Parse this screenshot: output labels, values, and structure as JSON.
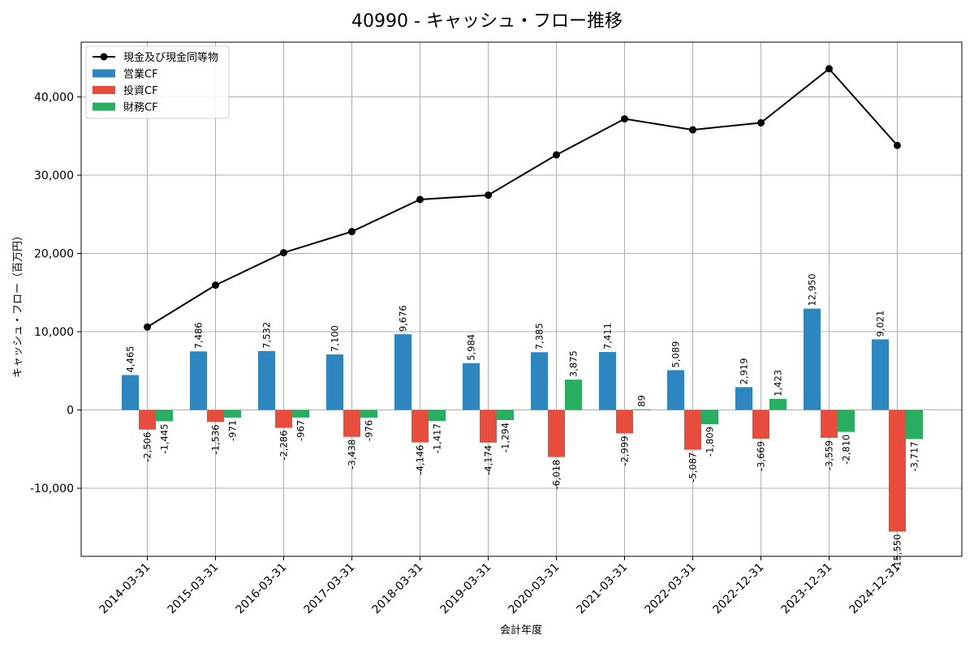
{
  "chart_data": {
    "type": "bar",
    "title": "40990 - キャッシュ・フロー推移",
    "xlabel": "会計年度",
    "ylabel": "キャッシュ・フロー（百万円）",
    "ylim": [
      -18700,
      47000
    ],
    "yticks": [
      -10000,
      0,
      10000,
      20000,
      30000,
      40000
    ],
    "ytick_labels": [
      "-10,000",
      "0",
      "10,000",
      "20,000",
      "30,000",
      "40,000"
    ],
    "grid": true,
    "legend_position": "top-left",
    "categories": [
      "2014-03-31",
      "2015-03-31",
      "2016-03-31",
      "2017-03-31",
      "2018-03-31",
      "2019-03-31",
      "2020-03-31",
      "2021-03-31",
      "2022-03-31",
      "2022-12-31",
      "2023-12-31",
      "2024-12-31"
    ],
    "series": [
      {
        "name": "営業CF",
        "kind": "bar",
        "color": "#2e86c1",
        "values": [
          4465,
          7486,
          7532,
          7100,
          9676,
          5984,
          7385,
          7411,
          5089,
          2919,
          12950,
          9021
        ],
        "labels": [
          "4,465",
          "7,486",
          "7,532",
          "7,100",
          "9,676",
          "5,984",
          "7,385",
          "7,411",
          "5,089",
          "2,919",
          "12,950",
          "9,021"
        ]
      },
      {
        "name": "投資CF",
        "kind": "bar",
        "color": "#e74c3c",
        "values": [
          -2506,
          -1536,
          -2286,
          -3438,
          -4146,
          -4174,
          -6018,
          -2999,
          -5087,
          -3669,
          -3559,
          -15550
        ],
        "labels": [
          "-2,506",
          "-1,536",
          "-2,286",
          "-3,438",
          "-4,146",
          "-4,174",
          "-6,018",
          "-2,999",
          "-5,087",
          "-3,669",
          "-3,559",
          "-15,550"
        ]
      },
      {
        "name": "財務CF",
        "kind": "bar",
        "color": "#27ae60",
        "values": [
          -1445,
          -971,
          -967,
          -976,
          -1417,
          -1294,
          3875,
          89,
          -1809,
          1423,
          -2810,
          -3717
        ],
        "labels": [
          "-1,445",
          "-971",
          "-967",
          "-976",
          "-1,417",
          "-1,294",
          "3,875",
          "89",
          "-1,809",
          "1,423",
          "-2,810",
          "-3,717"
        ]
      },
      {
        "name": "現金及び現金同等物",
        "kind": "line",
        "color": "#000000",
        "values": [
          10600,
          15950,
          20100,
          22800,
          26900,
          27450,
          32600,
          37200,
          35800,
          36700,
          43600,
          33800
        ]
      }
    ]
  }
}
